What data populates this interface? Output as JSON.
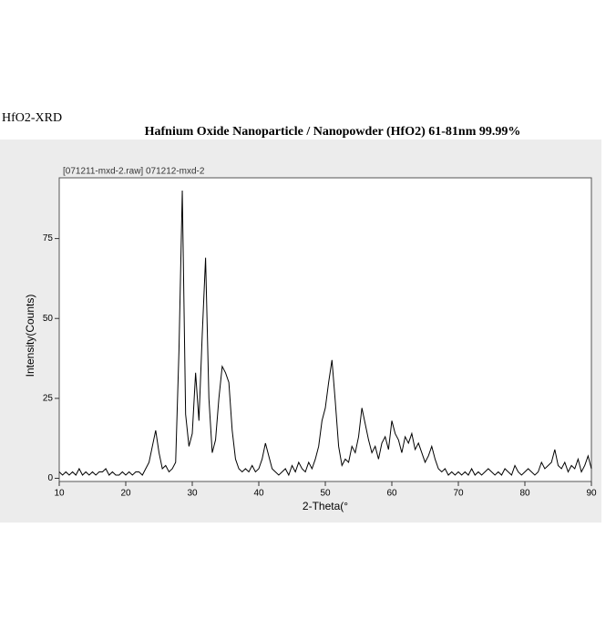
{
  "chart_data": {
    "type": "line",
    "annotation": "HfO2-XRD",
    "title": "Hafnium Oxide Nanoparticle / Nanopowder (HfO2)  61-81nm  99.99%",
    "xlabel": "2-Theta(°",
    "ylabel": "Intensity(Counts)",
    "xlim": [
      10,
      90
    ],
    "ylim": [
      -1,
      94
    ],
    "xticks": [
      10,
      20,
      30,
      40,
      50,
      60,
      70,
      80,
      90
    ],
    "yticks": [
      0,
      25,
      50,
      75
    ],
    "x": [
      10,
      10.5,
      11,
      11.5,
      12,
      12.5,
      13,
      13.5,
      14,
      14.5,
      15,
      15.5,
      16,
      16.5,
      17,
      17.5,
      18,
      18.5,
      19,
      19.5,
      20,
      20.5,
      21,
      21.5,
      22,
      22.5,
      23,
      23.5,
      24,
      24.5,
      25,
      25.5,
      26,
      26.5,
      27,
      27.5,
      28,
      28.5,
      29,
      29.5,
      30,
      30.5,
      31,
      31.5,
      32,
      32.5,
      33,
      33.5,
      34,
      34.5,
      35,
      35.5,
      36,
      36.5,
      37,
      37.5,
      38,
      38.5,
      39,
      39.5,
      40,
      40.5,
      41,
      41.5,
      42,
      42.5,
      43,
      43.5,
      44,
      44.5,
      45,
      45.5,
      46,
      46.5,
      47,
      47.5,
      48,
      48.5,
      49,
      49.5,
      50,
      50.5,
      51,
      51.5,
      52,
      52.5,
      53,
      53.5,
      54,
      54.5,
      55,
      55.5,
      56,
      56.5,
      57,
      57.5,
      58,
      58.5,
      59,
      59.5,
      60,
      60.5,
      61,
      61.5,
      62,
      62.5,
      63,
      63.5,
      64,
      64.5,
      65,
      65.5,
      66,
      66.5,
      67,
      67.5,
      68,
      68.5,
      69,
      69.5,
      70,
      70.5,
      71,
      71.5,
      72,
      72.5,
      73,
      73.5,
      74,
      74.5,
      75,
      75.5,
      76,
      76.5,
      77,
      77.5,
      78,
      78.5,
      79,
      79.5,
      80,
      80.5,
      81,
      81.5,
      82,
      82.5,
      83,
      83.5,
      84,
      84.5,
      85,
      85.5,
      86,
      86.5,
      87,
      87.5,
      88,
      88.5,
      89,
      89.5,
      90
    ],
    "series": [
      {
        "name": "[071211-mxd-2.raw] 071212-mxd-2",
        "color": "#000000",
        "values": [
          2,
          1,
          2,
          1,
          2,
          1,
          3,
          1,
          2,
          1,
          2,
          1,
          2,
          2,
          3,
          1,
          2,
          1,
          1,
          2,
          1,
          2,
          1,
          2,
          2,
          1,
          3,
          5,
          10,
          15,
          8,
          3,
          4,
          2,
          3,
          5,
          40,
          90,
          20,
          10,
          14,
          33,
          18,
          45,
          69,
          25,
          8,
          12,
          25,
          35,
          33,
          30,
          15,
          6,
          3,
          2,
          3,
          2,
          4,
          2,
          3,
          6,
          11,
          7,
          3,
          2,
          1,
          2,
          3,
          1,
          4,
          2,
          5,
          3,
          2,
          5,
          3,
          6,
          10,
          18,
          22,
          30,
          37,
          24,
          10,
          4,
          6,
          5,
          10,
          8,
          13,
          22,
          17,
          12,
          8,
          10,
          6,
          11,
          13,
          9,
          18,
          14,
          12,
          8,
          13,
          11,
          14,
          9,
          11,
          8,
          5,
          7,
          10,
          6,
          3,
          2,
          3,
          1,
          2,
          1,
          2,
          1,
          2,
          1,
          3,
          1,
          2,
          1,
          2,
          3,
          2,
          1,
          2,
          1,
          3,
          2,
          1,
          4,
          2,
          1,
          2,
          3,
          2,
          1,
          2,
          5,
          3,
          4,
          5,
          9,
          4,
          3,
          5,
          2,
          4,
          3,
          6,
          2,
          4,
          7,
          3
        ]
      }
    ]
  }
}
